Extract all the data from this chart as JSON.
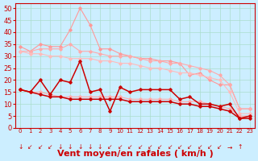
{
  "x": [
    0,
    1,
    2,
    3,
    4,
    5,
    6,
    7,
    8,
    9,
    10,
    11,
    12,
    13,
    14,
    15,
    16,
    17,
    18,
    19,
    20,
    21,
    22,
    23
  ],
  "series": {
    "light_pink_upper": [
      34,
      32,
      35,
      34,
      34,
      41,
      50,
      43,
      33,
      33,
      31,
      30,
      29,
      29,
      28,
      28,
      27,
      22,
      23,
      20,
      18,
      18,
      8,
      8
    ],
    "light_pink_mid1": [
      32,
      32,
      33,
      33,
      33,
      35,
      32,
      32,
      31,
      30,
      30,
      30,
      29,
      28,
      28,
      27,
      27,
      26,
      25,
      24,
      22,
      18,
      8,
      8
    ],
    "light_pink_mid2": [
      32,
      31,
      31,
      30,
      30,
      29,
      29,
      29,
      28,
      28,
      27,
      27,
      26,
      25,
      25,
      24,
      23,
      23,
      22,
      21,
      20,
      15,
      6,
      6
    ],
    "light_pink_lower": [
      16,
      15,
      15,
      14,
      13,
      13,
      13,
      13,
      13,
      13,
      13,
      12,
      12,
      12,
      12,
      12,
      11,
      11,
      11,
      10,
      9,
      8,
      5,
      5
    ],
    "dark_red_upper": [
      16,
      15,
      20,
      14,
      20,
      19,
      28,
      15,
      16,
      7,
      17,
      15,
      16,
      16,
      16,
      16,
      12,
      13,
      10,
      10,
      9,
      10,
      4,
      5
    ],
    "dark_red_lower": [
      16,
      15,
      14,
      13,
      13,
      12,
      12,
      12,
      12,
      12,
      12,
      11,
      11,
      11,
      11,
      11,
      10,
      10,
      9,
      9,
      8,
      7,
      4,
      4
    ]
  },
  "xlabel": "Vent moyen/en rafales ( km/h )",
  "ylabel_ticks": [
    0,
    5,
    10,
    15,
    20,
    25,
    30,
    35,
    40,
    45,
    50
  ],
  "xlim": [
    -0.5,
    23.5
  ],
  "ylim": [
    0,
    52
  ],
  "bg_color": "#cceeff",
  "grid_color": "#aaddcc",
  "colors": {
    "light_pink_upper": "#ff9999",
    "light_pink_mid1": "#ffaaaa",
    "light_pink_mid2": "#ffbbbb",
    "light_pink_lower": "#ffaaaa",
    "dark_red_upper": "#cc0000",
    "dark_red_lower": "#cc0000"
  },
  "arrow_chars": [
    "↓",
    "↙",
    "↙",
    "↙",
    "↓",
    "↓",
    "↓",
    "↓",
    "↓",
    "↙",
    "↙",
    "↙",
    "↙",
    "↙",
    "↙",
    "↙",
    "↙",
    "↙",
    "↙",
    "↙",
    "↙",
    "→",
    "↑",
    ""
  ],
  "xlabel_fontsize": 8,
  "tick_fontsize": 6
}
